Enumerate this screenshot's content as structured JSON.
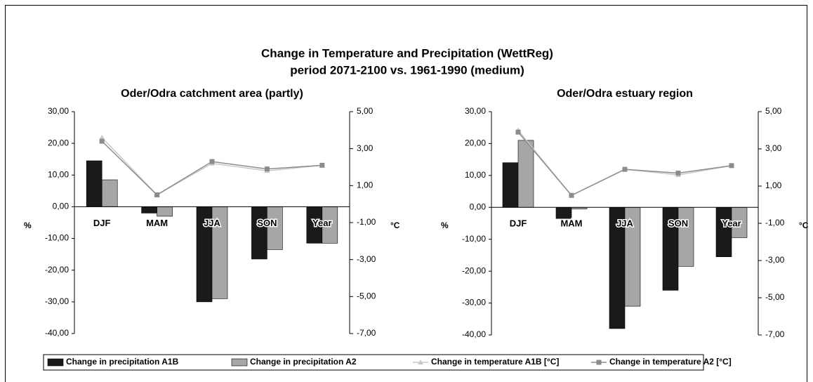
{
  "title": "Change in Temperature and Precipitation (WettReg)",
  "subtitle": "period 2071-2100 vs. 1961-1990 (medium)",
  "legend": [
    {
      "name": "Change in precipitation A1B",
      "color": "#1a1a1a",
      "marker": "bar"
    },
    {
      "name": "Change in precipitation A2",
      "color": "#a6a6a6",
      "marker": "bar"
    },
    {
      "name": "Change in temperature A1B [°C]",
      "color": "#c8c8c8",
      "marker": "triangle"
    },
    {
      "name": "Change in temperature A2 [°C]",
      "color": "#8c8c8c",
      "marker": "square"
    }
  ],
  "chart_data": [
    {
      "type": "bar",
      "title": "Oder/Odra catchment area (partly)",
      "ylabel": "%",
      "y2label": "°C",
      "categories": [
        "DJF",
        "MAM",
        "JJA",
        "SON",
        "Year"
      ],
      "ylim": [
        -40,
        30
      ],
      "yticks": [
        {
          "value": -40,
          "label": "-40,00"
        },
        {
          "value": -30,
          "label": "-30,00"
        },
        {
          "value": -20,
          "label": "-20,00"
        },
        {
          "value": -10,
          "label": "-10,00"
        },
        {
          "value": 0,
          "label": "0,00"
        },
        {
          "value": 10,
          "label": "10,00"
        },
        {
          "value": 20,
          "label": "20,00"
        },
        {
          "value": 30,
          "label": "30,00"
        }
      ],
      "y2lim": [
        -7,
        5
      ],
      "y2ticks": [
        {
          "value": -7,
          "label": "-7,00"
        },
        {
          "value": -5,
          "label": "-5,00"
        },
        {
          "value": -3,
          "label": "-3,00"
        },
        {
          "value": -1,
          "label": "-1,00"
        },
        {
          "value": 1,
          "label": "1,00"
        },
        {
          "value": 3,
          "label": "3,00"
        },
        {
          "value": 5,
          "label": "5,00"
        }
      ],
      "series": [
        {
          "type": "bar",
          "values": [
            14.5,
            -2,
            -30,
            -16.5,
            -11.5
          ]
        },
        {
          "type": "bar",
          "values": [
            8.5,
            -3,
            -29,
            -13.5,
            -11.5
          ]
        },
        {
          "type": "line",
          "axis": "y2",
          "values": [
            3.6,
            0.5,
            2.2,
            1.8,
            2.1
          ]
        },
        {
          "type": "line",
          "axis": "y2",
          "values": [
            3.4,
            0.5,
            2.3,
            1.9,
            2.1
          ]
        }
      ]
    },
    {
      "type": "bar",
      "title": "Oder/Odra estuary region",
      "ylabel": "%",
      "y2label": "°C",
      "categories": [
        "DJF",
        "MAM",
        "JJA",
        "SON",
        "Year"
      ],
      "ylim": [
        -40,
        30
      ],
      "yticks": [
        {
          "value": -40,
          "label": "-40,00"
        },
        {
          "value": -30,
          "label": "-30,00"
        },
        {
          "value": -20,
          "label": "-20,00"
        },
        {
          "value": -10,
          "label": "-10,00"
        },
        {
          "value": 0,
          "label": "0,00"
        },
        {
          "value": 10,
          "label": "10,00"
        },
        {
          "value": 20,
          "label": "20,00"
        },
        {
          "value": 30,
          "label": "30,00"
        }
      ],
      "y2lim": [
        -7,
        5
      ],
      "y2ticks": [
        {
          "value": -7,
          "label": "-7,00"
        },
        {
          "value": -5,
          "label": "-5,00"
        },
        {
          "value": -3,
          "label": "-3,00"
        },
        {
          "value": -1,
          "label": "-1,00"
        },
        {
          "value": 1,
          "label": "1,00"
        },
        {
          "value": 3,
          "label": "3,00"
        },
        {
          "value": 5,
          "label": "5,00"
        }
      ],
      "series": [
        {
          "type": "bar",
          "values": [
            14,
            -3.5,
            -38,
            -26,
            -15.5
          ]
        },
        {
          "type": "bar",
          "values": [
            21,
            -0.5,
            -31,
            -18.5,
            -9.5
          ]
        },
        {
          "type": "line",
          "axis": "y2",
          "values": [
            4.0,
            0.5,
            1.9,
            1.6,
            2.1
          ]
        },
        {
          "type": "line",
          "axis": "y2",
          "values": [
            3.9,
            0.5,
            1.9,
            1.7,
            2.1
          ]
        }
      ]
    }
  ]
}
